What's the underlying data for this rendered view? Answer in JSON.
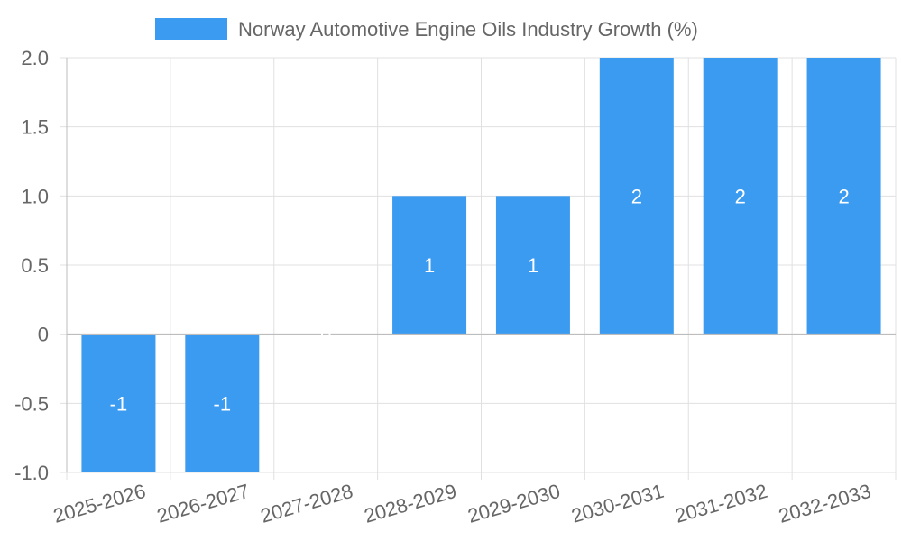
{
  "chart_data": {
    "type": "bar",
    "title": "",
    "xlabel": "",
    "ylabel": "",
    "categories": [
      "2025-2026",
      "2026-2027",
      "2027-2028",
      "2028-2029",
      "2029-2030",
      "2030-2031",
      "2031-2032",
      "2032-2033"
    ],
    "series": [
      {
        "name": "Norway Automotive Engine Oils Industry Growth (%)",
        "values": [
          -1,
          -1,
          0,
          1,
          1,
          2,
          2,
          2
        ],
        "data_labels": [
          "-1",
          "-1",
          "0",
          "1",
          "1",
          "2",
          "2",
          "2"
        ],
        "color": "#3a9bf0"
      }
    ],
    "ylim": [
      -1.0,
      2.0
    ],
    "yticks": [
      -1.0,
      -0.5,
      0,
      0.5,
      1.0,
      1.5,
      2.0
    ],
    "ytick_labels": [
      "-1.0",
      "-0.5",
      "0",
      "0.5",
      "1.0",
      "1.5",
      "2.0"
    ],
    "grid": true,
    "legend_position": "top"
  }
}
